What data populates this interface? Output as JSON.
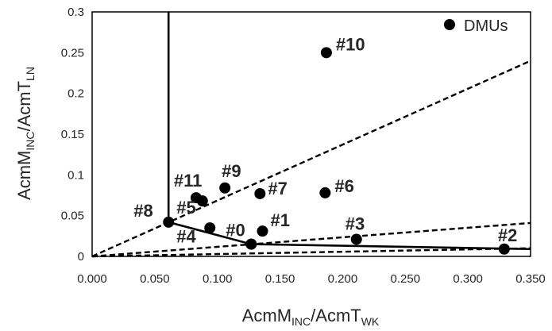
{
  "chart_data": {
    "type": "scatter",
    "title": "",
    "xlabel": {
      "main": "AcmM",
      "sub1": "INC",
      "mid": "/AcmT",
      "sub2": "WK"
    },
    "ylabel": {
      "main": "AcmM",
      "sub1": "INC",
      "mid": "/AcmT",
      "sub2": "LN"
    },
    "xlim": [
      0,
      0.35
    ],
    "ylim": [
      0,
      0.3
    ],
    "xticks": [
      "0.000",
      "0.050",
      "0.100",
      "0.150",
      "0.200",
      "0.250",
      "0.300",
      "0.350"
    ],
    "yticks": [
      "0",
      "0.05",
      "0.1",
      "0.15",
      "0.2",
      "0.25",
      "0.3"
    ],
    "grid": false,
    "legend": {
      "position": "top-right",
      "entries": [
        "DMUs"
      ]
    },
    "series": [
      {
        "name": "DMUs",
        "points": [
          {
            "label": "#0",
            "x": 0.127,
            "y": 0.015
          },
          {
            "label": "#1",
            "x": 0.136,
            "y": 0.031
          },
          {
            "label": "#2",
            "x": 0.329,
            "y": 0.009
          },
          {
            "label": "#3",
            "x": 0.211,
            "y": 0.021
          },
          {
            "label": "#4",
            "x": 0.127,
            "y": 0.015
          },
          {
            "label": "#5",
            "x": 0.094,
            "y": 0.035
          },
          {
            "label": "#6",
            "x": 0.186,
            "y": 0.078
          },
          {
            "label": "#7",
            "x": 0.134,
            "y": 0.077
          },
          {
            "label": "#8",
            "x": 0.061,
            "y": 0.042
          },
          {
            "label": "#9",
            "x": 0.106,
            "y": 0.084
          },
          {
            "label": "#10",
            "x": 0.187,
            "y": 0.25
          },
          {
            "label": "#11",
            "x": 0.083,
            "y": 0.072
          },
          {
            "label": "",
            "x": 0.088,
            "y": 0.068
          }
        ]
      }
    ],
    "frontier": [
      {
        "x": 0.061,
        "y": 0.3
      },
      {
        "x": 0.061,
        "y": 0.042
      },
      {
        "x": 0.127,
        "y": 0.015
      },
      {
        "x": 0.35,
        "y": 0.009
      }
    ],
    "rays": [
      {
        "to": [
          0.35,
          0.24
        ]
      },
      {
        "to": [
          0.35,
          0.041
        ]
      },
      {
        "to": [
          0.35,
          0.01
        ]
      }
    ]
  }
}
